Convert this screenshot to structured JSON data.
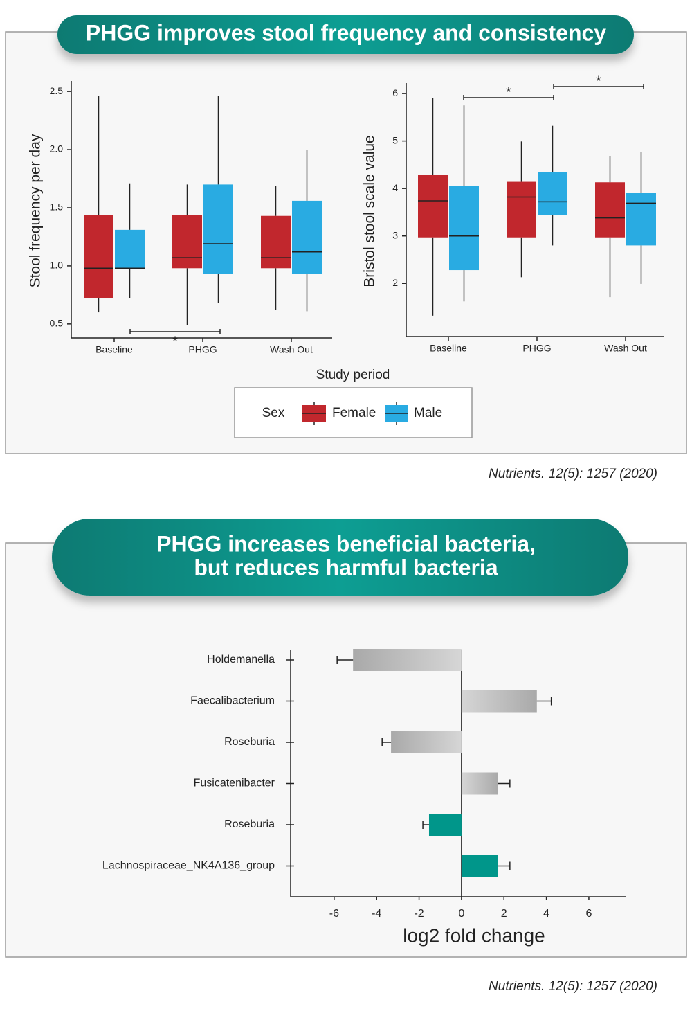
{
  "panels": [
    {
      "title_lines": [
        "PHGG improves stool frequency and consistency"
      ],
      "source": "Nutrients. 12(5): 1257 (2020)",
      "x_label": "Study period",
      "legend_title": "Sex"
    },
    {
      "title_lines": [
        "PHGG increases beneficial bacteria,",
        "but reduces harmful bacteria"
      ],
      "source": "Nutrients. 12(5): 1257 (2020)"
    }
  ],
  "chart_data": [
    {
      "type": "box",
      "y_label": "Stool frequency per day",
      "categories": [
        "Baseline",
        "PHGG",
        "Wash Out"
      ],
      "series": [
        {
          "name": "Female",
          "color": "#c1272d",
          "values": [
            {
              "min": 0.6,
              "q1": 0.72,
              "median": 0.98,
              "q3": 1.44,
              "max": 2.46
            },
            {
              "min": 0.49,
              "q1": 0.98,
              "median": 1.07,
              "q3": 1.44,
              "max": 1.7
            },
            {
              "min": 0.62,
              "q1": 0.98,
              "median": 1.07,
              "q3": 1.43,
              "max": 1.69
            }
          ]
        },
        {
          "name": "Male",
          "color": "#29abe2",
          "values": [
            {
              "min": 0.72,
              "q1": 0.98,
              "median": 0.98,
              "q3": 1.31,
              "max": 1.71
            },
            {
              "min": 0.68,
              "q1": 0.93,
              "median": 1.19,
              "q3": 1.7,
              "max": 2.46
            },
            {
              "min": 0.61,
              "q1": 0.93,
              "median": 1.12,
              "q3": 1.56,
              "max": 2.0
            }
          ]
        }
      ],
      "ylim": [
        0.38,
        2.59
      ],
      "yticks": [
        0.5,
        {
          "value": 1,
          "label": "1.0"
        },
        1.5,
        {
          "value": 2,
          "label": "2.0"
        },
        2.5
      ],
      "annotations": [
        {
          "text": "*"
        }
      ]
    },
    {
      "type": "box",
      "y_label": "Bristol stool scale value",
      "categories": [
        "Baseline",
        "PHGG",
        "Wash Out"
      ],
      "series": [
        {
          "name": "Female",
          "color": "#c1272d",
          "values": [
            {
              "min": 1.32,
              "q1": 2.97,
              "median": 3.74,
              "q3": 4.29,
              "max": 5.91
            },
            {
              "min": 2.13,
              "q1": 2.97,
              "median": 3.82,
              "q3": 4.14,
              "max": 4.99
            },
            {
              "min": 1.71,
              "q1": 2.97,
              "median": 3.38,
              "q3": 4.13,
              "max": 4.68
            }
          ]
        },
        {
          "name": "Male",
          "color": "#29abe2",
          "values": [
            {
              "min": 1.62,
              "q1": 2.28,
              "median": 3.0,
              "q3": 4.06,
              "max": 5.75
            },
            {
              "min": 2.8,
              "q1": 3.44,
              "median": 3.72,
              "q3": 4.34,
              "max": 5.32
            },
            {
              "min": 1.99,
              "q1": 2.8,
              "median": 3.69,
              "q3": 3.91,
              "max": 4.77
            }
          ]
        }
      ],
      "ylim": [
        0.88,
        6.22
      ],
      "yticks": [
        2,
        3,
        4,
        5,
        6
      ],
      "annotations": [
        {
          "text": "*"
        },
        {
          "text": "*"
        }
      ]
    },
    {
      "type": "hbar",
      "x_label": "log2 fold change",
      "categories": [
        "Holdemanella",
        "Faecalibacterium",
        "Roseburia",
        "Fusicatenibacter",
        "Roseburia",
        "Lachnospiraceae_NK4A136_group"
      ],
      "values": [
        -5.11,
        3.55,
        -3.32,
        1.73,
        -1.53,
        1.73
      ],
      "errors": [
        0.75,
        0.68,
        0.42,
        0.55,
        0.29,
        0.55
      ],
      "colors": [
        "#a9a9a9",
        "#a9a9a9",
        "#a9a9a9",
        "#a9a9a9",
        "#00968a",
        "#00968a"
      ],
      "xlim": [
        -8.05,
        7.73
      ],
      "xticks": [
        -6,
        -4,
        -2,
        0,
        2,
        4,
        6
      ]
    }
  ]
}
